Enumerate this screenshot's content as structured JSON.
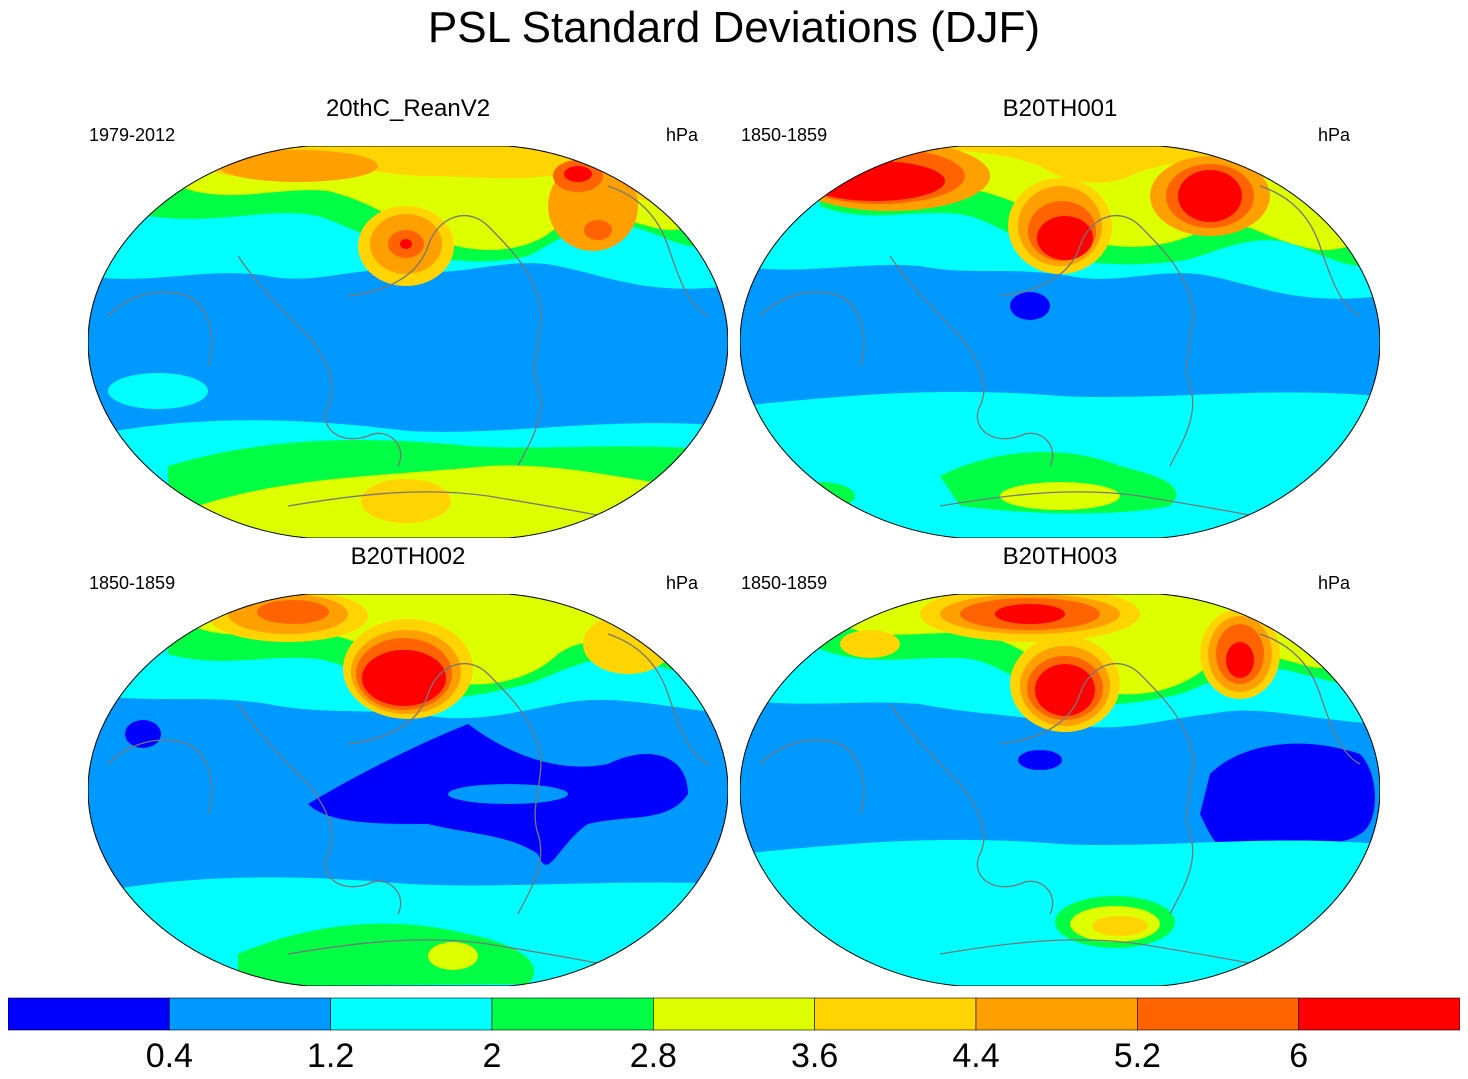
{
  "title": "PSL Standard Deviations (DJF)",
  "panels": [
    {
      "title": "20thC_ReanV2",
      "left_label": "1979-2012",
      "right_label": "hPa",
      "map": "reanalysis"
    },
    {
      "title": "B20TH001",
      "left_label": "1850-1859",
      "right_label": "hPa",
      "map": "run001"
    },
    {
      "title": "B20TH002",
      "left_label": "1850-1859",
      "right_label": "hPa",
      "map": "run002"
    },
    {
      "title": "B20TH003",
      "left_label": "1850-1859",
      "right_label": "hPa",
      "map": "run003"
    }
  ],
  "colorbar": {
    "levels": [
      "0.4",
      "1.2",
      "2",
      "2.8",
      "3.6",
      "4.4",
      "5.2",
      "6"
    ],
    "colors": [
      "#0000ff",
      "#0099ff",
      "#00ffff",
      "#00ff44",
      "#ddff00",
      "#ffd400",
      "#ffa000",
      "#ff6400",
      "#ff0000"
    ]
  },
  "coastline_color": "#777777"
}
